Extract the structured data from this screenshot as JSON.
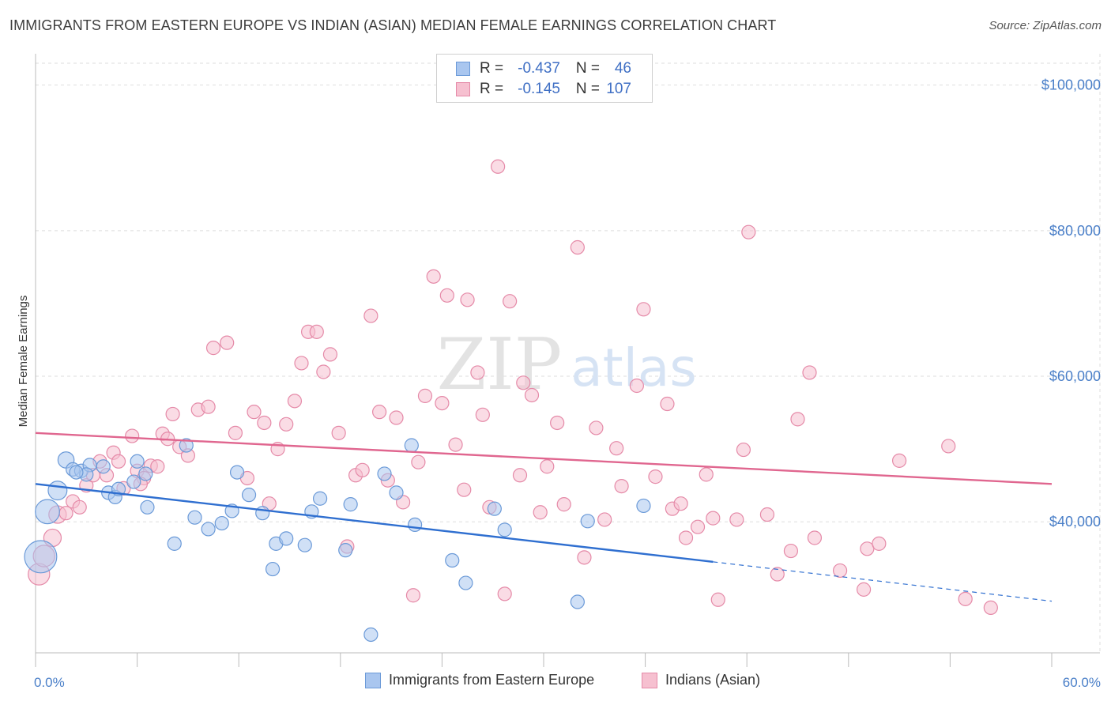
{
  "title": "IMMIGRANTS FROM EASTERN EUROPE VS INDIAN (ASIAN) MEDIAN FEMALE EARNINGS CORRELATION CHART",
  "source": "Source: ZipAtlas.com",
  "watermark": {
    "zip": "ZIP",
    "atlas": "atlas"
  },
  "legend_stats": [
    {
      "r_label": "R =",
      "r_value": "-0.437",
      "n_label": "N =",
      "n_value": "46"
    },
    {
      "r_label": "R =",
      "r_value": "-0.145",
      "n_label": "N =",
      "n_value": "107"
    }
  ],
  "colors": {
    "blue_fill": "#a9c6ef",
    "blue_stroke": "#6b9ad8",
    "blue_line": "#2f6fd0",
    "pink_fill": "#f6c0d0",
    "pink_stroke": "#e58aa8",
    "pink_line": "#e0668f",
    "tick_text": "#4a7fc8",
    "grid": "#dddddd"
  },
  "chart_data": {
    "type": "scatter",
    "title": "IMMIGRANTS FROM EASTERN EUROPE VS INDIAN (ASIAN) MEDIAN FEMALE EARNINGS CORRELATION CHART",
    "xlabel": "",
    "ylabel": "Median Female Earnings",
    "xlim": [
      0,
      60
    ],
    "ylim": [
      22000,
      103000
    ],
    "x_tick_labels": [
      "0.0%",
      "60.0%"
    ],
    "y_ticks": [
      {
        "value": 40000,
        "label": "$40,000"
      },
      {
        "value": 60000,
        "label": "$60,000"
      },
      {
        "value": 80000,
        "label": "$80,000"
      },
      {
        "value": 100000,
        "label": "$100,000"
      }
    ],
    "grid": true,
    "legend_position": "bottom",
    "series": [
      {
        "name": "Immigrants from Eastern Europe",
        "color": "#a9c6ef",
        "trend": {
          "x0": 0,
          "y0": 45200,
          "x1": 40,
          "y1": 34500,
          "dashed_to_x": 60,
          "dashed_to_y": 29100
        },
        "points": [
          [
            0.3,
            35200,
            2.4
          ],
          [
            0.7,
            41400,
            1.8
          ],
          [
            1.3,
            44300,
            1.4
          ],
          [
            1.8,
            48500,
            1.2
          ],
          [
            2.2,
            47200,
            1.0
          ],
          [
            2.7,
            47000,
            1.0
          ],
          [
            3.2,
            47800,
            1.0
          ],
          [
            3.0,
            46500,
            1.0
          ],
          [
            4.3,
            44000,
            1.0
          ],
          [
            4.7,
            43400,
            1.0
          ],
          [
            4.9,
            44500,
            1.0
          ],
          [
            6.0,
            48300,
            1.0
          ],
          [
            5.8,
            45500,
            1.0
          ],
          [
            6.5,
            46600,
            1.0
          ],
          [
            6.6,
            42000,
            1.0
          ],
          [
            8.9,
            50500,
            1.0
          ],
          [
            9.4,
            40600,
            1.0
          ],
          [
            10.2,
            39000,
            1.0
          ],
          [
            11.0,
            39800,
            1.0
          ],
          [
            11.6,
            41500,
            1.0
          ],
          [
            11.9,
            46800,
            1.0
          ],
          [
            12.6,
            43700,
            1.0
          ],
          [
            13.4,
            41200,
            1.0
          ],
          [
            14.2,
            37000,
            1.0
          ],
          [
            14.0,
            33500,
            1.0
          ],
          [
            14.8,
            37700,
            1.0
          ],
          [
            15.9,
            36800,
            1.0
          ],
          [
            16.3,
            41400,
            1.0
          ],
          [
            16.8,
            43200,
            1.0
          ],
          [
            18.3,
            36100,
            1.0
          ],
          [
            18.6,
            42400,
            1.0
          ],
          [
            19.8,
            24500,
            1.0
          ],
          [
            20.6,
            46600,
            1.0
          ],
          [
            21.3,
            44000,
            1.0
          ],
          [
            22.2,
            50500,
            1.0
          ],
          [
            22.4,
            39600,
            1.0
          ],
          [
            24.6,
            34700,
            1.0
          ],
          [
            25.4,
            31600,
            1.0
          ],
          [
            27.1,
            41800,
            1.0
          ],
          [
            27.7,
            38900,
            1.0
          ],
          [
            32.0,
            29000,
            1.0
          ],
          [
            32.6,
            40100,
            1.0
          ],
          [
            35.9,
            42200,
            1.0
          ],
          [
            8.2,
            37000,
            1.0
          ],
          [
            4.0,
            47600,
            1.0
          ],
          [
            2.4,
            46800,
            1.0
          ]
        ]
      },
      {
        "name": "Indians (Asian)",
        "color": "#f6c0d0",
        "trend": {
          "x0": 0,
          "y0": 52200,
          "x1": 60,
          "y1": 45200
        },
        "points": [
          [
            0.2,
            32800,
            1.6
          ],
          [
            0.5,
            35300,
            1.6
          ],
          [
            1.0,
            37800,
            1.3
          ],
          [
            1.3,
            41000,
            1.3
          ],
          [
            1.8,
            41200,
            1.0
          ],
          [
            2.2,
            42800,
            1.0
          ],
          [
            2.6,
            42000,
            1.0
          ],
          [
            3.0,
            45000,
            1.0
          ],
          [
            3.4,
            46400,
            1.0
          ],
          [
            3.8,
            48300,
            1.0
          ],
          [
            4.2,
            46400,
            1.0
          ],
          [
            4.6,
            49500,
            1.0
          ],
          [
            4.9,
            48300,
            1.0
          ],
          [
            5.2,
            44600,
            1.0
          ],
          [
            5.7,
            51800,
            1.0
          ],
          [
            6.0,
            47000,
            1.0
          ],
          [
            6.4,
            46000,
            1.0
          ],
          [
            6.8,
            47700,
            1.0
          ],
          [
            7.2,
            47600,
            1.0
          ],
          [
            7.5,
            52100,
            1.0
          ],
          [
            7.8,
            51400,
            1.0
          ],
          [
            8.1,
            54800,
            1.0
          ],
          [
            8.5,
            50300,
            1.0
          ],
          [
            9.0,
            49100,
            1.0
          ],
          [
            9.6,
            55400,
            1.0
          ],
          [
            10.2,
            55800,
            1.0
          ],
          [
            10.5,
            63900,
            1.0
          ],
          [
            11.3,
            64600,
            1.0
          ],
          [
            11.8,
            52200,
            1.0
          ],
          [
            12.5,
            46000,
            1.0
          ],
          [
            12.9,
            55100,
            1.0
          ],
          [
            13.5,
            53600,
            1.0
          ],
          [
            13.8,
            42500,
            1.0
          ],
          [
            14.3,
            50000,
            1.0
          ],
          [
            14.8,
            53400,
            1.0
          ],
          [
            15.3,
            56600,
            1.0
          ],
          [
            15.7,
            61800,
            1.0
          ],
          [
            16.1,
            66100,
            1.0
          ],
          [
            16.6,
            66100,
            1.0
          ],
          [
            17.0,
            60600,
            1.0
          ],
          [
            17.4,
            63000,
            1.0
          ],
          [
            17.9,
            52200,
            1.0
          ],
          [
            18.4,
            36600,
            1.0
          ],
          [
            18.9,
            46400,
            1.0
          ],
          [
            19.3,
            47100,
            1.0
          ],
          [
            19.8,
            68300,
            1.0
          ],
          [
            20.3,
            55100,
            1.0
          ],
          [
            20.8,
            45700,
            1.0
          ],
          [
            21.3,
            54300,
            1.0
          ],
          [
            21.7,
            42700,
            1.0
          ],
          [
            22.3,
            29900,
            1.0
          ],
          [
            22.6,
            48200,
            1.0
          ],
          [
            23.0,
            57300,
            1.0
          ],
          [
            23.5,
            73700,
            1.0
          ],
          [
            24.0,
            56300,
            1.0
          ],
          [
            24.3,
            71100,
            1.0
          ],
          [
            24.8,
            50600,
            1.0
          ],
          [
            25.3,
            44400,
            1.0
          ],
          [
            25.5,
            70500,
            1.0
          ],
          [
            26.1,
            60500,
            1.0
          ],
          [
            26.4,
            54700,
            1.0
          ],
          [
            26.8,
            42000,
            1.0
          ],
          [
            27.3,
            88800,
            1.0
          ],
          [
            27.7,
            30100,
            1.0
          ],
          [
            28.0,
            70300,
            1.0
          ],
          [
            28.6,
            46400,
            1.0
          ],
          [
            28.8,
            59100,
            1.0
          ],
          [
            29.3,
            57400,
            1.0
          ],
          [
            29.8,
            41300,
            1.0
          ],
          [
            30.2,
            47600,
            1.0
          ],
          [
            30.8,
            53600,
            1.0
          ],
          [
            31.2,
            42400,
            1.0
          ],
          [
            32.0,
            77700,
            1.0
          ],
          [
            32.4,
            35100,
            1.0
          ],
          [
            33.1,
            52900,
            1.0
          ],
          [
            33.6,
            40300,
            1.0
          ],
          [
            34.3,
            50100,
            1.0
          ],
          [
            34.6,
            44900,
            1.0
          ],
          [
            35.9,
            69200,
            1.0
          ],
          [
            35.5,
            58700,
            1.0
          ],
          [
            36.6,
            46200,
            1.0
          ],
          [
            37.3,
            56200,
            1.0
          ],
          [
            37.6,
            41800,
            1.0
          ],
          [
            38.1,
            42500,
            1.0
          ],
          [
            38.4,
            37800,
            1.0
          ],
          [
            39.1,
            39300,
            1.0
          ],
          [
            39.6,
            46500,
            1.0
          ],
          [
            40.0,
            40500,
            1.0
          ],
          [
            40.3,
            29300,
            1.0
          ],
          [
            41.4,
            40300,
            1.0
          ],
          [
            41.8,
            49900,
            1.0
          ],
          [
            42.1,
            79800,
            1.0
          ],
          [
            43.2,
            41000,
            1.0
          ],
          [
            43.8,
            32800,
            1.0
          ],
          [
            45.0,
            54100,
            1.0
          ],
          [
            45.7,
            60500,
            1.0
          ],
          [
            46.0,
            37800,
            1.0
          ],
          [
            47.5,
            33300,
            1.0
          ],
          [
            48.9,
            30700,
            1.0
          ],
          [
            49.1,
            36300,
            1.0
          ],
          [
            49.8,
            37000,
            1.0
          ],
          [
            51.0,
            48400,
            1.0
          ],
          [
            53.9,
            50400,
            1.0
          ],
          [
            54.9,
            29400,
            1.0
          ],
          [
            56.4,
            28200,
            1.0
          ],
          [
            44.6,
            36000,
            1.0
          ],
          [
            6.2,
            45200,
            1.0
          ]
        ]
      }
    ]
  }
}
